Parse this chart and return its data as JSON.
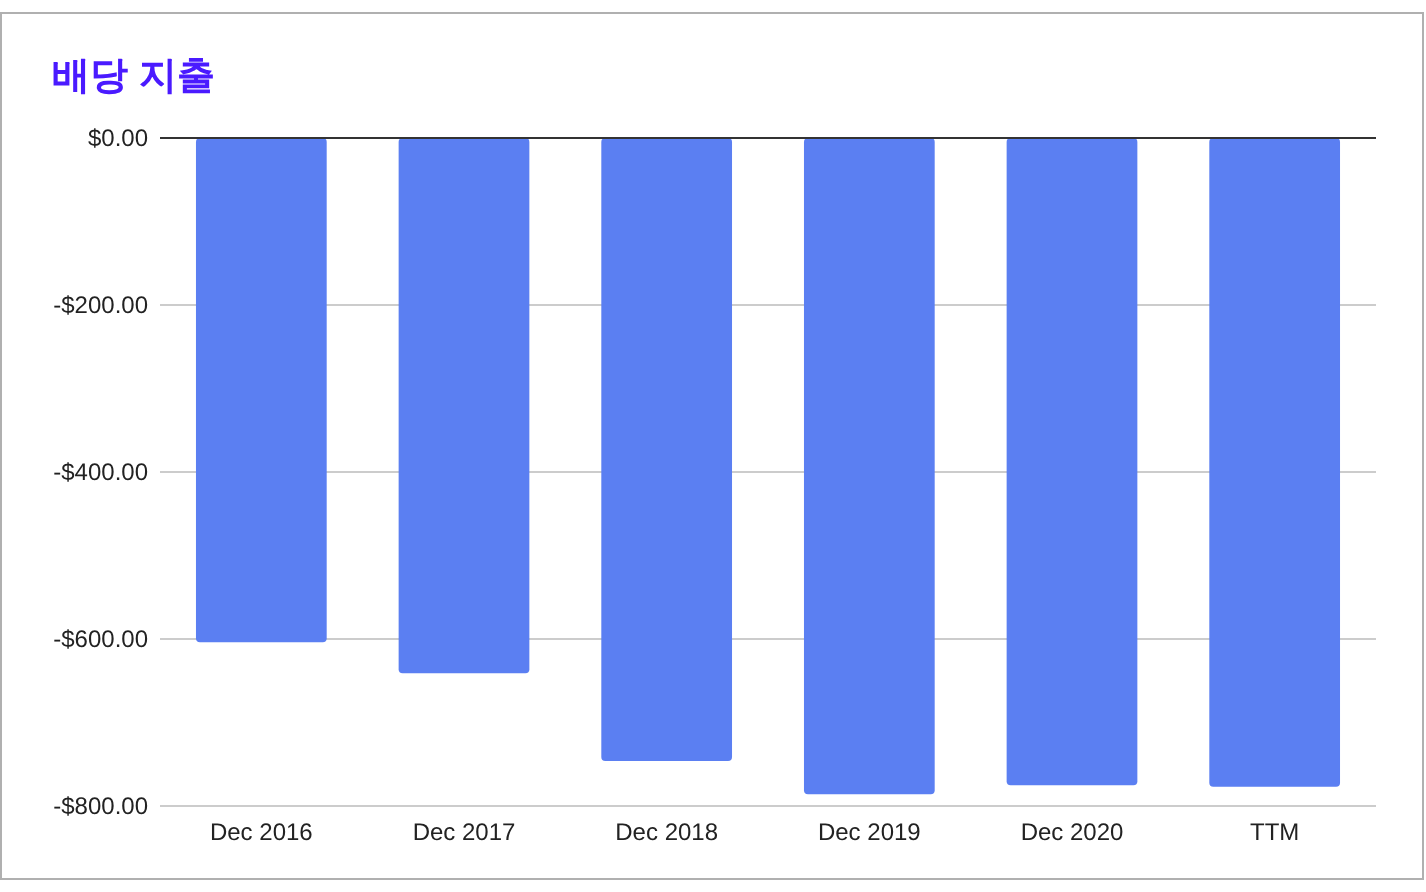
{
  "chart_data": {
    "type": "bar",
    "title": "배당 지출",
    "categories": [
      "Dec 2016",
      "Dec 2017",
      "Dec 2018",
      "Dec 2019",
      "Dec 2020",
      "TTM"
    ],
    "values": [
      -604,
      -641,
      -746,
      -786,
      -775,
      -777
    ],
    "color": "#5b7ff2",
    "ylim": [
      -800,
      0
    ],
    "yticks": [
      {
        "value": -800,
        "label": "-$800.00"
      },
      {
        "value": -600,
        "label": "-$600.00"
      },
      {
        "value": -400,
        "label": "-$400.00"
      },
      {
        "value": -200,
        "label": "-$200.00"
      },
      {
        "value": 0,
        "label": "$0.00"
      }
    ],
    "grid": "y"
  }
}
